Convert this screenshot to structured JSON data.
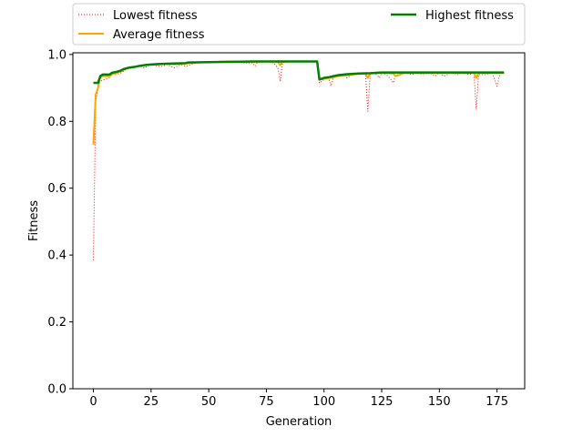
{
  "chart_data": {
    "type": "line",
    "xlabel": "Generation",
    "ylabel": "Fitness",
    "xlim": [
      -8.9,
      187
    ],
    "ylim": [
      0.0,
      1.005
    ],
    "xticks": [
      0,
      25,
      50,
      75,
      100,
      125,
      150,
      175
    ],
    "yticks": [
      0.0,
      0.2,
      0.4,
      0.6,
      0.8,
      1.0
    ],
    "xtick_labels": [
      "0",
      "25",
      "50",
      "75",
      "100",
      "125",
      "150",
      "175"
    ],
    "ytick_labels": [
      "0.0",
      "0.2",
      "0.4",
      "0.6",
      "0.8",
      "1.0"
    ],
    "grid": false,
    "legend_placement": "above plot, two columns",
    "series": [
      {
        "name": "Lowest fitness",
        "color": "#ff0000",
        "style": "dotted",
        "x": [
          0,
          1,
          2,
          3,
          5,
          7,
          8,
          10,
          12,
          14,
          17,
          20,
          22,
          25,
          28,
          30,
          32,
          35,
          38,
          40,
          45,
          50,
          55,
          60,
          65,
          69,
          70,
          71,
          75,
          78,
          80,
          81,
          82,
          85,
          90,
          95,
          97,
          98,
          100,
          102,
          103,
          104,
          106,
          108,
          110,
          112,
          115,
          118,
          119,
          120,
          122,
          124,
          125,
          127,
          129,
          130,
          131,
          133,
          135,
          138,
          140,
          143,
          146,
          148,
          150,
          152,
          155,
          158,
          160,
          163,
          165,
          166,
          167,
          170,
          173,
          175,
          176,
          177,
          178
        ],
        "values": [
          0.385,
          0.86,
          0.9,
          0.92,
          0.925,
          0.93,
          0.94,
          0.94,
          0.945,
          0.955,
          0.96,
          0.965,
          0.96,
          0.97,
          0.965,
          0.965,
          0.97,
          0.96,
          0.97,
          0.965,
          0.975,
          0.975,
          0.98,
          0.98,
          0.975,
          0.975,
          0.965,
          0.975,
          0.98,
          0.975,
          0.96,
          0.92,
          0.975,
          0.98,
          0.98,
          0.98,
          0.98,
          0.915,
          0.925,
          0.93,
          0.905,
          0.93,
          0.935,
          0.94,
          0.93,
          0.94,
          0.945,
          0.94,
          0.83,
          0.94,
          0.945,
          0.93,
          0.945,
          0.94,
          0.925,
          0.915,
          0.935,
          0.945,
          0.945,
          0.94,
          0.945,
          0.94,
          0.945,
          0.935,
          0.945,
          0.935,
          0.945,
          0.94,
          0.945,
          0.94,
          0.945,
          0.835,
          0.94,
          0.94,
          0.945,
          0.905,
          0.935,
          0.945,
          0.945
        ]
      },
      {
        "name": "Average fitness",
        "color": "#ffa500",
        "style": "solid",
        "x": [
          0,
          1,
          2,
          3,
          5,
          7,
          8,
          10,
          12,
          14,
          17,
          20,
          22,
          25,
          28,
          30,
          35,
          40,
          45,
          50,
          55,
          60,
          65,
          70,
          75,
          80,
          81,
          82,
          85,
          90,
          95,
          97,
          98,
          100,
          103,
          106,
          110,
          115,
          118,
          119,
          120,
          125,
          130,
          131,
          135,
          140,
          145,
          150,
          155,
          160,
          165,
          166,
          167,
          170,
          175,
          178
        ],
        "values": [
          0.73,
          0.88,
          0.9,
          0.935,
          0.935,
          0.935,
          0.94,
          0.945,
          0.95,
          0.958,
          0.962,
          0.965,
          0.968,
          0.97,
          0.97,
          0.972,
          0.972,
          0.973,
          0.976,
          0.977,
          0.978,
          0.979,
          0.979,
          0.978,
          0.979,
          0.978,
          0.968,
          0.978,
          0.979,
          0.979,
          0.979,
          0.979,
          0.925,
          0.928,
          0.93,
          0.935,
          0.938,
          0.942,
          0.943,
          0.93,
          0.943,
          0.945,
          0.943,
          0.935,
          0.945,
          0.945,
          0.945,
          0.945,
          0.945,
          0.945,
          0.945,
          0.93,
          0.945,
          0.945,
          0.945,
          0.945
        ]
      },
      {
        "name": "Highest fitness",
        "color": "#008000",
        "style": "solid",
        "x": [
          0,
          1,
          2,
          3,
          4,
          6,
          7,
          8,
          10,
          12,
          13,
          15,
          18,
          20,
          23,
          27,
          30,
          35,
          40,
          41,
          50,
          60,
          70,
          80,
          90,
          97,
          98,
          100,
          102,
          104,
          106,
          110,
          115,
          120,
          125,
          130,
          140,
          150,
          160,
          170,
          178
        ],
        "values": [
          0.915,
          0.915,
          0.915,
          0.935,
          0.94,
          0.94,
          0.94,
          0.945,
          0.948,
          0.952,
          0.956,
          0.96,
          0.963,
          0.966,
          0.969,
          0.971,
          0.972,
          0.973,
          0.974,
          0.976,
          0.977,
          0.978,
          0.979,
          0.979,
          0.979,
          0.979,
          0.925,
          0.93,
          0.932,
          0.935,
          0.938,
          0.941,
          0.943,
          0.944,
          0.946,
          0.946,
          0.946,
          0.946,
          0.946,
          0.946,
          0.946
        ]
      }
    ]
  }
}
